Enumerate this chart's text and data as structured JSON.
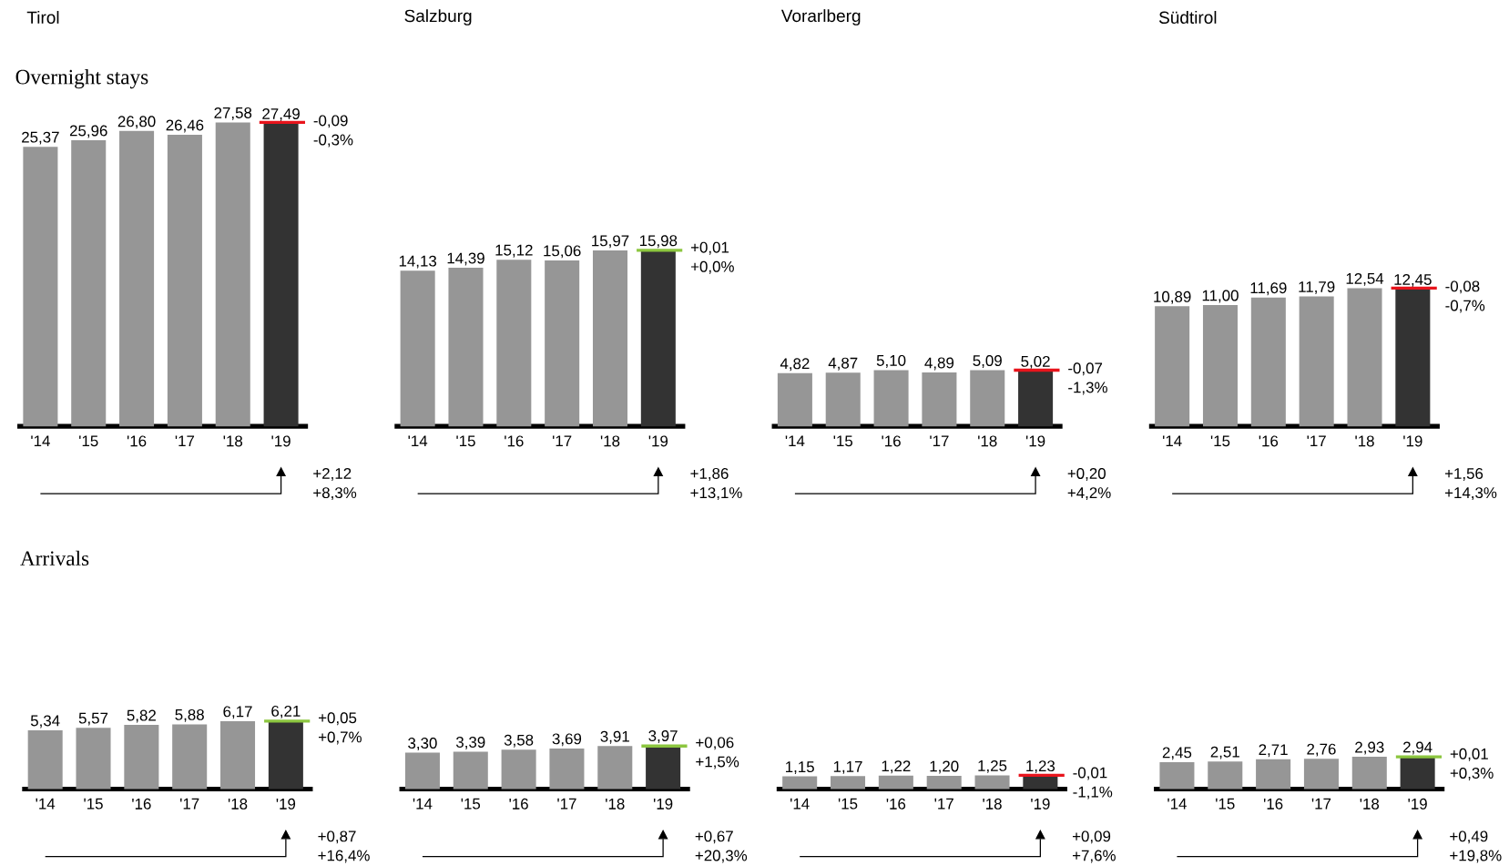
{
  "chart_data": [
    {
      "type": "bar",
      "title": "Tirol",
      "subtitle": "Overnight stays",
      "categories": [
        "'14",
        "'15",
        "'16",
        "'17",
        "'18",
        "'19"
      ],
      "values": [
        25.37,
        25.96,
        26.8,
        26.46,
        27.58,
        27.49
      ],
      "value_labels": [
        "25,37",
        "25,96",
        "26,80",
        "26,46",
        "27,58",
        "27,49"
      ],
      "colors": [
        "#969696",
        "#969696",
        "#969696",
        "#969696",
        "#969696",
        "#333333"
      ],
      "tick_labels": "x",
      "ref_lines": [
        {
          "axis": "y",
          "value": 27.58,
          "color": "#e8141c"
        }
      ],
      "annotations": [
        {
          "text": "-0,09",
          "x": "'19",
          "y": 27.49
        },
        {
          "text": "-0,3%",
          "x": "'19",
          "y": 27.49
        },
        "+2,12",
        "+8,3%"
      ]
    },
    {
      "type": "bar",
      "title": "Salzburg",
      "categories": [
        "'14",
        "'15",
        "'16",
        "'17",
        "'18",
        "'19"
      ],
      "values": [
        14.13,
        14.39,
        15.12,
        15.06,
        15.97,
        15.98
      ],
      "value_labels": [
        "14,13",
        "14,39",
        "15,12",
        "15,06",
        "15,97",
        "15,98"
      ],
      "colors": [
        "#969696",
        "#969696",
        "#969696",
        "#969696",
        "#969696",
        "#333333"
      ],
      "tick_labels": "x",
      "ref_lines": [
        {
          "axis": "y",
          "value": 15.97,
          "color": "#8cc63f"
        }
      ],
      "annotations": [
        {
          "text": "+0,01",
          "x": "'19",
          "y": 15.98
        },
        {
          "text": "+0,0%",
          "x": "'19",
          "y": 15.98
        },
        "+1,86",
        "+13,1%"
      ]
    },
    {
      "type": "bar",
      "title": "Vorarlberg",
      "categories": [
        "'14",
        "'15",
        "'16",
        "'17",
        "'18",
        "'19"
      ],
      "values": [
        4.82,
        4.87,
        5.1,
        4.89,
        5.09,
        5.02
      ],
      "value_labels": [
        "4,82",
        "4,87",
        "5,10",
        "4,89",
        "5,09",
        "5,02"
      ],
      "colors": [
        "#969696",
        "#969696",
        "#969696",
        "#969696",
        "#969696",
        "#333333"
      ],
      "tick_labels": "x",
      "ref_lines": [
        {
          "axis": "y",
          "value": 5.09,
          "color": "#e8141c"
        }
      ],
      "annotations": [
        {
          "text": "-0,07",
          "x": "'19",
          "y": 5.02
        },
        {
          "text": "-1,3%",
          "x": "'19",
          "y": 5.02
        },
        "+0,20",
        "+4,2%"
      ]
    },
    {
      "type": "bar",
      "title": "Südtirol",
      "categories": [
        "'14",
        "'15",
        "'16",
        "'17",
        "'18",
        "'19"
      ],
      "values": [
        10.89,
        11.0,
        11.69,
        11.79,
        12.54,
        12.45
      ],
      "value_labels": [
        "10,89",
        "11,00",
        "11,69",
        "11,79",
        "12,54",
        "12,45"
      ],
      "colors": [
        "#969696",
        "#969696",
        "#969696",
        "#969696",
        "#969696",
        "#333333"
      ],
      "tick_labels": "x",
      "ref_lines": [
        {
          "axis": "y",
          "value": 12.54,
          "color": "#e8141c"
        }
      ],
      "annotations": [
        {
          "text": "-0,08",
          "x": "'19",
          "y": 12.45
        },
        {
          "text": "-0,7%",
          "x": "'19",
          "y": 12.45
        },
        "+1,56",
        "+14,3%"
      ]
    },
    {
      "type": "bar",
      "subtitle": "Arrivals",
      "categories": [
        "'14",
        "'15",
        "'16",
        "'17",
        "'18",
        "'19"
      ],
      "values": [
        5.34,
        5.57,
        5.82,
        5.88,
        6.17,
        6.21
      ],
      "value_labels": [
        "5,34",
        "5,57",
        "5,82",
        "5,88",
        "6,17",
        "6,21"
      ],
      "colors": [
        "#969696",
        "#969696",
        "#969696",
        "#969696",
        "#969696",
        "#333333"
      ],
      "tick_labels": "x",
      "ref_lines": [
        {
          "axis": "y",
          "value": 6.17,
          "color": "#8cc63f"
        }
      ],
      "annotations": [
        {
          "text": "+0,05",
          "x": "'19",
          "y": 6.21
        },
        {
          "text": "+0,7%",
          "x": "'19",
          "y": 6.21
        },
        "+0,87",
        "+16,4%"
      ]
    },
    {
      "type": "bar",
      "categories": [
        "'14",
        "'15",
        "'16",
        "'17",
        "'18",
        "'19"
      ],
      "values": [
        3.3,
        3.39,
        3.58,
        3.69,
        3.91,
        3.97
      ],
      "value_labels": [
        "3,30",
        "3,39",
        "3,58",
        "3,69",
        "3,91",
        "3,97"
      ],
      "colors": [
        "#969696",
        "#969696",
        "#969696",
        "#969696",
        "#969696",
        "#333333"
      ],
      "tick_labels": "x",
      "ref_lines": [
        {
          "axis": "y",
          "value": 3.91,
          "color": "#8cc63f"
        }
      ],
      "annotations": [
        {
          "text": "+0,06",
          "x": "'19",
          "y": 3.97
        },
        {
          "text": "+1,5%",
          "x": "'19",
          "y": 3.97
        },
        "+0,67",
        "+20,3%"
      ]
    },
    {
      "type": "bar",
      "categories": [
        "'14",
        "'15",
        "'16",
        "'17",
        "'18",
        "'19"
      ],
      "values": [
        1.15,
        1.17,
        1.22,
        1.2,
        1.25,
        1.23
      ],
      "value_labels": [
        "1,15",
        "1,17",
        "1,22",
        "1,20",
        "1,25",
        "1,23"
      ],
      "colors": [
        "#969696",
        "#969696",
        "#969696",
        "#969696",
        "#969696",
        "#333333"
      ],
      "tick_labels": "x",
      "ref_lines": [
        {
          "axis": "y",
          "value": 1.25,
          "color": "#e8141c"
        }
      ],
      "annotations": [
        {
          "text": "-0,01",
          "x": "'19",
          "y": 1.23
        },
        {
          "text": "-1,1%",
          "x": "'19",
          "y": 1.23
        },
        "+0,09",
        "+7,6%"
      ]
    },
    {
      "type": "bar",
      "categories": [
        "'14",
        "'15",
        "'16",
        "'17",
        "'18",
        "'19"
      ],
      "values": [
        2.45,
        2.51,
        2.71,
        2.76,
        2.93,
        2.94
      ],
      "value_labels": [
        "2,45",
        "2,51",
        "2,71",
        "2,76",
        "2,93",
        "2,94"
      ],
      "colors": [
        "#969696",
        "#969696",
        "#969696",
        "#969696",
        "#969696",
        "#333333"
      ],
      "tick_labels": "x",
      "ref_lines": [
        {
          "axis": "y",
          "value": 2.93,
          "color": "#8cc63f"
        }
      ],
      "annotations": [
        {
          "text": "+0,01",
          "x": "'19",
          "y": 2.94
        },
        {
          "text": "+0,3%",
          "x": "'19",
          "y": 2.94
        },
        "+0,49",
        "+19,8%"
      ]
    }
  ]
}
